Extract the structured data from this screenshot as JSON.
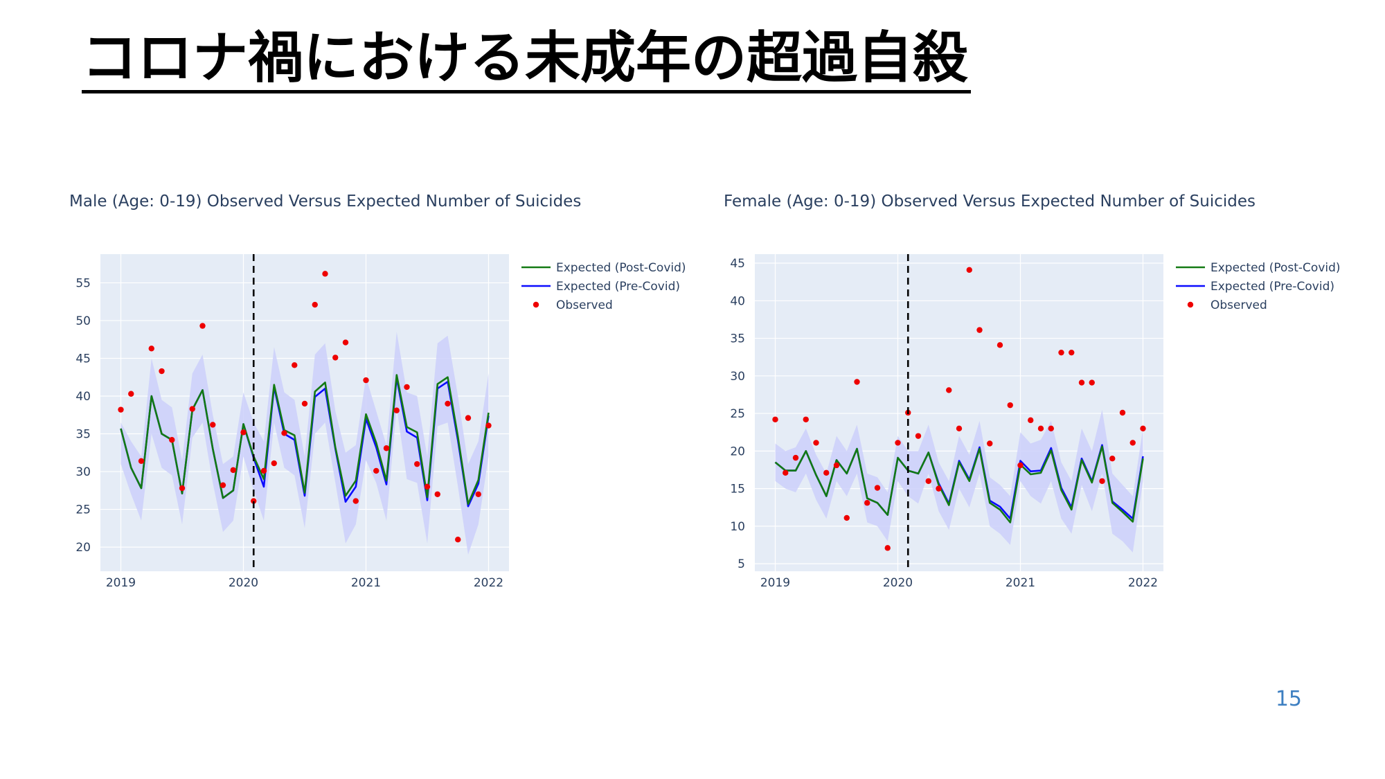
{
  "slide": {
    "title": "コロナ禍における未成年の超過自殺",
    "page_number": "15"
  },
  "chart_data": [
    {
      "type": "line",
      "title": "Male (Age: 0-19) Observed Versus Expected Number of Suicides",
      "x_start": "2019-01",
      "x_ticks": [
        "2019",
        "2020",
        "2021",
        "2022"
      ],
      "y_ticks": [
        "20",
        "25",
        "30",
        "35",
        "40",
        "45",
        "50",
        "55"
      ],
      "xlim": [
        "2018-11",
        "2022-03"
      ],
      "ylim": [
        16.8,
        58.8
      ],
      "covid_marker": "2020-02",
      "grid": true,
      "legend_position": "right",
      "colors": {
        "post": "#137a13",
        "pre": "#0b0bff",
        "observed": "#ee0000",
        "band": "#ccd0fa",
        "plot_bg": "#e5ecf6",
        "grid": "#ffffff",
        "text": "#2a3f5f"
      },
      "series": [
        {
          "name": "Expected (Post-Covid)",
          "kind": "line",
          "values": [
            35.7,
            30.5,
            27.8,
            40.0,
            35.0,
            34.2,
            27.1,
            38.2,
            40.8,
            33.0,
            26.5,
            27.5,
            36.3,
            32.0,
            29.0,
            41.5,
            35.5,
            34.8,
            27.2,
            40.6,
            41.8,
            33.2,
            26.8,
            28.8,
            37.6,
            33.8,
            28.8,
            42.8,
            35.9,
            35.2,
            26.6,
            41.6,
            42.5,
            34.6,
            25.7,
            28.9,
            37.8
          ]
        },
        {
          "name": "Expected (Pre-Covid)",
          "kind": "line",
          "values": [
            35.7,
            30.5,
            27.8,
            40.0,
            35.0,
            34.2,
            27.1,
            38.2,
            40.8,
            33.0,
            26.5,
            27.5,
            36.3,
            31.8,
            28.0,
            41.2,
            35.0,
            34.2,
            26.8,
            39.9,
            41.0,
            33.0,
            26.0,
            28.0,
            37.0,
            33.2,
            28.3,
            42.4,
            35.3,
            34.5,
            26.2,
            41.0,
            41.9,
            34.1,
            25.4,
            28.4,
            37.4
          ]
        },
        {
          "name": "Observed",
          "kind": "points",
          "values": [
            38.2,
            40.3,
            31.4,
            46.3,
            43.3,
            34.2,
            27.8,
            38.3,
            49.3,
            36.2,
            28.2,
            30.2,
            35.2,
            26.1,
            30.1,
            31.1,
            35.1,
            44.1,
            39.0,
            52.1,
            56.2,
            45.1,
            47.1,
            26.1,
            42.1,
            30.1,
            33.1,
            38.1,
            41.2,
            31.0,
            28.0,
            27.0,
            39.0,
            21.0,
            37.1,
            27.0,
            36.1
          ]
        }
      ],
      "band": {
        "lower": [
          31.0,
          27.0,
          23.5,
          35.0,
          30.5,
          29.5,
          23.0,
          34.5,
          36.5,
          28.5,
          22.0,
          23.5,
          32.0,
          27.5,
          23.5,
          36.5,
          30.5,
          29.5,
          22.5,
          35.0,
          36.5,
          28.5,
          20.5,
          23.0,
          31.5,
          28.5,
          23.5,
          38.5,
          29.0,
          28.5,
          20.5,
          36.0,
          36.5,
          28.0,
          19.0,
          23.0,
          32.0
        ],
        "upper": [
          36.5,
          34.0,
          32.0,
          45.0,
          39.5,
          38.5,
          31.5,
          43.0,
          45.5,
          37.5,
          31.0,
          32.0,
          40.5,
          36.5,
          34.0,
          46.5,
          40.5,
          39.5,
          32.0,
          45.5,
          47.0,
          38.0,
          32.5,
          33.5,
          42.5,
          38.0,
          33.5,
          48.5,
          40.5,
          40.0,
          32.0,
          47.0,
          48.0,
          40.0,
          31.0,
          34.0,
          43.0
        ]
      }
    },
    {
      "type": "line",
      "title": "Female (Age: 0-19) Observed Versus Expected Number of Suicides",
      "x_start": "2019-01",
      "x_ticks": [
        "2019",
        "2020",
        "2021",
        "2022"
      ],
      "y_ticks": [
        "5",
        "10",
        "15",
        "20",
        "25",
        "30",
        "35",
        "40",
        "45"
      ],
      "xlim": [
        "2018-11",
        "2022-03"
      ],
      "ylim": [
        4.0,
        46.2
      ],
      "covid_marker": "2020-02",
      "grid": true,
      "legend_position": "right",
      "colors": {
        "post": "#137a13",
        "pre": "#0b0bff",
        "observed": "#ee0000",
        "band": "#ccd0fa",
        "plot_bg": "#e5ecf6",
        "grid": "#ffffff",
        "text": "#2a3f5f"
      },
      "series": [
        {
          "name": "Expected (Post-Covid)",
          "kind": "line",
          "values": [
            18.5,
            17.4,
            17.4,
            20.0,
            16.8,
            14.0,
            18.8,
            17.0,
            20.3,
            13.7,
            13.1,
            11.5,
            19.1,
            17.4,
            17.0,
            19.8,
            15.5,
            12.8,
            18.5,
            16.0,
            20.3,
            13.1,
            12.2,
            10.5,
            18.2,
            16.9,
            17.1,
            20.1,
            14.8,
            12.2,
            18.8,
            15.8,
            20.6,
            13.1,
            11.9,
            10.6,
            19.0
          ]
        },
        {
          "name": "Expected (Pre-Covid)",
          "kind": "line",
          "values": [
            18.5,
            17.4,
            17.4,
            20.0,
            16.8,
            14.0,
            18.8,
            17.0,
            20.3,
            13.7,
            13.1,
            11.5,
            19.1,
            17.4,
            17.0,
            19.8,
            15.7,
            13.0,
            18.7,
            16.2,
            20.5,
            13.4,
            12.6,
            11.0,
            18.7,
            17.3,
            17.4,
            20.4,
            15.1,
            12.5,
            19.0,
            16.0,
            20.8,
            13.3,
            12.2,
            11.0,
            19.3
          ]
        },
        {
          "name": "Observed",
          "kind": "points",
          "values": [
            24.2,
            17.1,
            19.1,
            24.2,
            21.1,
            17.1,
            18.1,
            11.1,
            29.2,
            13.1,
            15.1,
            7.1,
            21.1,
            25.1,
            22.0,
            16.0,
            15.0,
            28.1,
            23.0,
            44.1,
            36.1,
            21.0,
            34.1,
            26.1,
            18.1,
            24.1,
            23.0,
            23.0,
            33.1,
            33.1,
            29.1,
            29.1,
            16.0,
            19.0,
            25.1,
            21.1,
            23.0
          ]
        }
      ],
      "band": {
        "lower": [
          16.0,
          15.0,
          14.5,
          17.0,
          13.5,
          11.0,
          16.0,
          14.0,
          17.0,
          10.5,
          10.0,
          8.0,
          16.0,
          14.0,
          13.0,
          17.0,
          12.0,
          9.5,
          15.0,
          12.5,
          17.0,
          10.0,
          9.0,
          7.5,
          16.0,
          14.0,
          13.0,
          16.0,
          11.0,
          9.0,
          15.5,
          12.0,
          17.0,
          9.0,
          8.0,
          6.5,
          16.0
        ],
        "upper": [
          21.0,
          20.0,
          20.5,
          23.0,
          19.5,
          17.0,
          22.0,
          20.0,
          23.5,
          17.0,
          16.5,
          14.5,
          22.0,
          20.0,
          20.0,
          23.5,
          18.5,
          16.0,
          22.0,
          19.5,
          24.0,
          16.5,
          15.5,
          14.0,
          22.5,
          21.0,
          21.5,
          24.0,
          18.5,
          16.0,
          23.0,
          20.0,
          25.5,
          17.0,
          15.5,
          14.0,
          23.0
        ]
      }
    }
  ]
}
